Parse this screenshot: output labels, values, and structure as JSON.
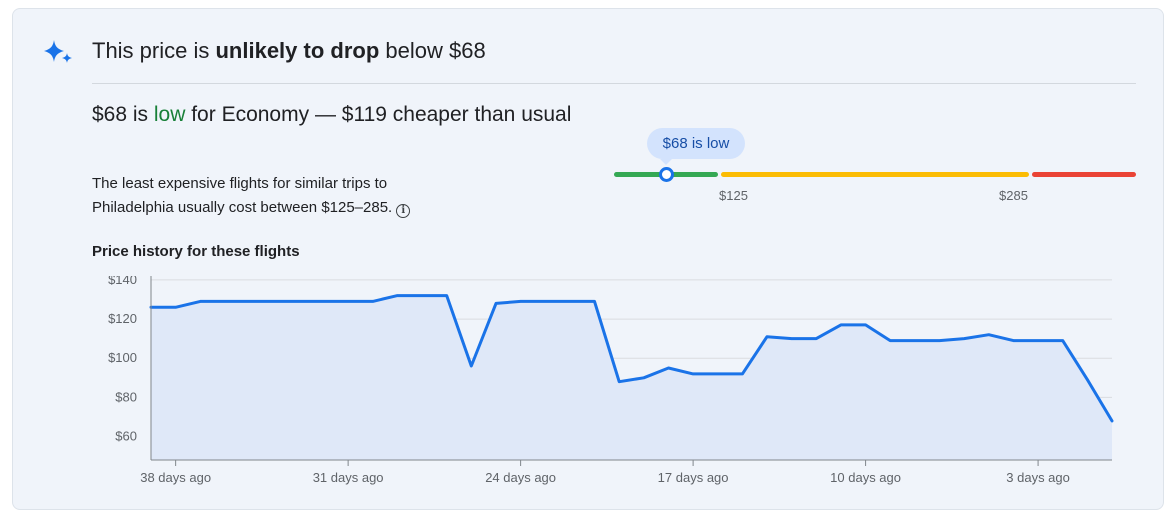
{
  "header": {
    "icon": "sparkle-icon",
    "text_prefix": "This price is ",
    "text_bold": "unlikely to drop",
    "text_suffix": " below $68"
  },
  "summary": {
    "prefix": "$68 is ",
    "level": "low",
    "suffix": " for Economy — $119 cheaper than usual"
  },
  "description": "The least expensive flights for similar trips to Philadelphia usually cost between $125–285.",
  "price_range": {
    "current_label": "$68 is low",
    "current_price": 68,
    "low_threshold_label": "$125",
    "high_threshold_label": "$285",
    "colors": {
      "low": "#34a853",
      "typical": "#fbbc04",
      "high": "#ea4335",
      "marker": "#1a73e8"
    }
  },
  "history_title": "Price history for these flights",
  "chart_data": {
    "type": "line",
    "title": "Price history for these flights",
    "xlabel": "",
    "ylabel": "",
    "ylim": [
      48,
      142
    ],
    "y_ticks": [
      "$140",
      "$120",
      "$100",
      "$80",
      "$60"
    ],
    "y_tick_values": [
      140,
      120,
      100,
      80,
      60
    ],
    "x_ticks": [
      "38 days ago",
      "31 days ago",
      "24 days ago",
      "17 days ago",
      "10 days ago",
      "3 days ago"
    ],
    "x_tick_values": [
      38,
      31,
      24,
      17,
      10,
      3
    ],
    "x_range": [
      39,
      0
    ],
    "x_unit": "days ago",
    "series": [
      {
        "color": "#1a73e8",
        "fill": "#dfe8f8",
        "x": [
          39,
          38,
          37,
          36,
          35,
          34,
          33,
          32,
          31,
          30,
          29,
          28,
          27,
          26,
          25,
          24,
          23,
          22,
          21,
          20,
          19,
          18,
          17,
          16,
          15,
          14,
          13,
          12,
          11,
          10,
          9,
          8,
          7,
          6,
          5,
          4,
          3,
          2,
          1,
          0
        ],
        "values": [
          126,
          126,
          129,
          129,
          129,
          129,
          129,
          129,
          129,
          129,
          132,
          132,
          132,
          96,
          128,
          129,
          129,
          129,
          129,
          88,
          90,
          95,
          92,
          92,
          92,
          111,
          110,
          110,
          117,
          117,
          109,
          109,
          109,
          110,
          112,
          109,
          109,
          109,
          89,
          68
        ]
      }
    ],
    "grid": true,
    "legend": "none"
  }
}
